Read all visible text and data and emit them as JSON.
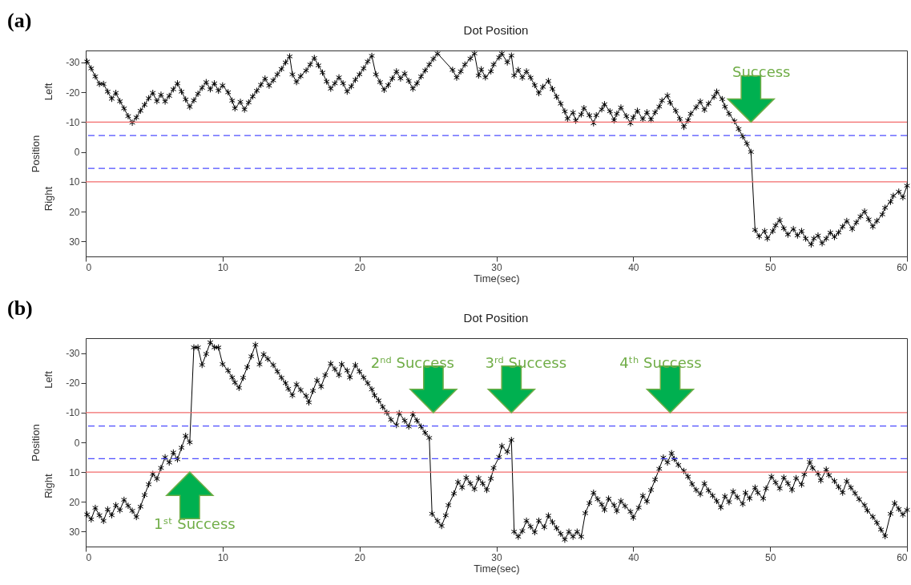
{
  "chart_data": [
    {
      "type": "line",
      "title": "Dot Position",
      "xlabel": "Time(sec)",
      "ylabel": "Position",
      "marker": "cross",
      "line_style": "solid",
      "xlim": [
        0,
        60
      ],
      "xticks": [
        0,
        10,
        20,
        30,
        40,
        50,
        60
      ],
      "ylim": [
        35,
        -34
      ],
      "yticks": [
        -30,
        -20,
        -10,
        0,
        10,
        20,
        30
      ],
      "x": [
        0.1,
        0.4,
        0.7,
        1.0,
        1.3,
        1.6,
        1.9,
        2.2,
        2.5,
        2.8,
        3.1,
        3.4,
        3.7,
        4.0,
        4.3,
        4.6,
        4.9,
        5.2,
        5.5,
        5.8,
        6.1,
        6.4,
        6.7,
        7.0,
        7.3,
        7.6,
        7.9,
        8.2,
        8.5,
        8.8,
        9.1,
        9.4,
        9.7,
        10.0,
        10.4,
        10.7,
        10.9,
        11.3,
        11.6,
        11.9,
        12.2,
        12.5,
        12.8,
        13.1,
        13.4,
        13.7,
        14.0,
        14.3,
        14.6,
        14.9,
        15.1,
        15.4,
        15.7,
        16.1,
        16.4,
        16.7,
        17.0,
        17.3,
        17.6,
        17.9,
        18.2,
        18.5,
        18.8,
        19.1,
        19.4,
        19.7,
        20.0,
        20.3,
        20.6,
        20.9,
        21.2,
        21.5,
        21.8,
        22.1,
        22.4,
        22.7,
        23.0,
        23.3,
        23.6,
        23.9,
        24.2,
        24.5,
        24.8,
        25.1,
        25.4,
        25.7,
        26.8,
        27.1,
        27.4,
        27.7,
        28.1,
        28.4,
        28.7,
        28.9,
        29.2,
        29.6,
        29.8,
        30.2,
        30.4,
        30.8,
        31.1,
        31.3,
        31.6,
        31.9,
        32.2,
        32.5,
        32.8,
        33.1,
        33.4,
        33.8,
        34.1,
        34.4,
        34.7,
        35.0,
        35.2,
        35.6,
        35.8,
        36.2,
        36.4,
        36.8,
        37.1,
        37.3,
        37.7,
        37.9,
        38.3,
        38.6,
        38.8,
        39.1,
        39.5,
        39.8,
        40.0,
        40.3,
        40.7,
        41.0,
        41.3,
        41.6,
        41.9,
        42.1,
        42.5,
        42.7,
        43.1,
        43.4,
        43.7,
        44.0,
        44.2,
        44.6,
        44.9,
        45.2,
        45.5,
        45.9,
        46.1,
        46.5,
        46.7,
        47.0,
        47.4,
        47.7,
        48.0,
        48.3,
        48.6,
        48.9,
        49.2,
        49.6,
        49.8,
        50.2,
        50.4,
        50.7,
        51.0,
        51.3,
        51.7,
        52.0,
        52.3,
        52.6,
        53.0,
        53.2,
        53.5,
        53.8,
        54.1,
        54.4,
        54.7,
        55.0,
        55.3,
        55.6,
        56.0,
        56.3,
        56.6,
        56.9,
        57.2,
        57.5,
        57.8,
        58.2,
        58.4,
        58.8,
        59.0,
        59.4,
        59.7,
        60.0
      ],
      "series": [
        {
          "color": "#000000",
          "values": [
            -30.3,
            -28,
            -25.3,
            -22.8,
            -22.8,
            -20.2,
            -17.8,
            -19.8,
            -17,
            -14.6,
            -12,
            -9.8,
            -11.6,
            -13.8,
            -15.8,
            -18,
            -19.8,
            -17,
            -19.2,
            -16.9,
            -18.8,
            -21,
            -23,
            -20.2,
            -17.6,
            -15.1,
            -17.3,
            -19.5,
            -21.5,
            -23.4,
            -21,
            -23,
            -20.5,
            -22.3,
            -20,
            -17.2,
            -14.6,
            -16.8,
            -14.2,
            -16.6,
            -18.6,
            -20.5,
            -22.5,
            -24.6,
            -22.2,
            -24,
            -26,
            -27.8,
            -30,
            -32,
            -26,
            -23.4,
            -25.4,
            -27.3,
            -29.3,
            -31.5,
            -29,
            -26.6,
            -23.6,
            -21.2,
            -23,
            -25,
            -23,
            -20.2,
            -22,
            -24.2,
            -26,
            -28,
            -30.3,
            -32.2,
            -26,
            -23.4,
            -20.8,
            -22.4,
            -24.6,
            -27,
            -24.6,
            -26.3,
            -23.8,
            -21.2,
            -23,
            -25.3,
            -27.3,
            -29.3,
            -31.2,
            -33,
            -27.5,
            -24.9,
            -27,
            -29.3,
            -31.3,
            -33,
            -25.6,
            -27.7,
            -25,
            -27,
            -29.3,
            -31.7,
            -33,
            -30,
            -32.3,
            -25.6,
            -27.5,
            -24.9,
            -27,
            -24.9,
            -22.4,
            -19.7,
            -21.8,
            -23.8,
            -21.1,
            -18.5,
            -16.2,
            -13.6,
            -11.1,
            -13.2,
            -10.5,
            -12.6,
            -14.7,
            -12.3,
            -9.6,
            -12.3,
            -14.3,
            -16,
            -13.6,
            -10.6,
            -12.8,
            -14.9,
            -12,
            -9.6,
            -11.6,
            -13.8,
            -11,
            -13.3,
            -10.8,
            -13.3,
            -15.2,
            -17.2,
            -18.9,
            -16.5,
            -13.8,
            -11.1,
            -8.4,
            -10.6,
            -12.8,
            -15,
            -16.9,
            -14.1,
            -16.2,
            -18.5,
            -20.2,
            -17.7,
            -15.2,
            -12.8,
            -10.3,
            -7.7,
            -5.2,
            -2.8,
            0,
            26.1,
            28.3,
            26.5,
            29,
            26.5,
            24.6,
            22.8,
            25.6,
            27.7,
            25.8,
            28,
            26.5,
            29,
            31,
            29,
            28,
            30.6,
            29,
            27,
            28.5,
            27,
            25,
            23.1,
            25.8,
            23.6,
            21.6,
            19.9,
            22.6,
            25,
            23.1,
            20.9,
            18.7,
            16.7,
            14.7,
            13.3,
            15.2,
            11.3
          ]
        }
      ],
      "ref_lines": [
        {
          "axis": "y",
          "value": -10,
          "color": "#f26b6b",
          "line_style": "solid"
        },
        {
          "axis": "y",
          "value": -5.5,
          "color": "#4d4dff",
          "line_style": "dashed"
        },
        {
          "axis": "y",
          "value": 5.5,
          "color": "#4d4dff",
          "line_style": "dashed"
        },
        {
          "axis": "y",
          "value": 10,
          "color": "#f26b6b",
          "line_style": "solid"
        }
      ],
      "annotations": [
        "(a)",
        "Left",
        "Right",
        {
          "text": "Success",
          "x": 48.6,
          "y": -10
        }
      ]
    },
    {
      "type": "line",
      "title": "Dot Position",
      "xlabel": "Time(sec)",
      "ylabel": "Position",
      "marker": "cross",
      "line_style": "solid",
      "xlim": [
        0,
        60
      ],
      "xticks": [
        0,
        10,
        20,
        30,
        40,
        50,
        60
      ],
      "ylim": [
        35,
        -35
      ],
      "yticks": [
        -30,
        -20,
        -10,
        0,
        10,
        20,
        30
      ],
      "x": [
        0.1,
        0.4,
        0.7,
        1.0,
        1.3,
        1.6,
        1.9,
        2.2,
        2.5,
        2.8,
        3.1,
        3.4,
        3.7,
        4.0,
        4.3,
        4.6,
        4.9,
        5.2,
        5.5,
        5.8,
        6.1,
        6.4,
        6.7,
        7.0,
        7.3,
        7.6,
        7.9,
        8.2,
        8.5,
        8.8,
        9.1,
        9.4,
        9.7,
        10.0,
        10.4,
        10.7,
        10.9,
        11.2,
        11.5,
        11.8,
        12.1,
        12.4,
        12.7,
        13.0,
        13.3,
        13.7,
        14.0,
        14.3,
        14.6,
        14.8,
        15.1,
        15.4,
        15.7,
        16.1,
        16.3,
        16.6,
        16.9,
        17.2,
        17.5,
        17.9,
        18.2,
        18.5,
        18.7,
        19.1,
        19.3,
        19.7,
        20.0,
        20.3,
        20.6,
        20.9,
        21.1,
        21.4,
        21.7,
        22.0,
        22.3,
        22.7,
        22.9,
        23.3,
        23.6,
        23.9,
        24.2,
        24.5,
        24.8,
        25.1,
        25.3,
        25.7,
        26.0,
        26.3,
        26.5,
        26.9,
        27.2,
        27.5,
        27.8,
        28.1,
        28.4,
        28.7,
        29.0,
        29.3,
        29.6,
        29.8,
        30.2,
        30.4,
        30.8,
        31.1,
        31.3,
        31.6,
        31.9,
        32.2,
        32.5,
        32.8,
        33.1,
        33.5,
        33.8,
        34.1,
        34.4,
        34.7,
        35.0,
        35.3,
        35.6,
        35.9,
        36.2,
        36.5,
        36.8,
        37.1,
        37.4,
        37.7,
        37.9,
        38.2,
        38.6,
        38.8,
        39.1,
        39.4,
        39.8,
        40.0,
        40.4,
        40.7,
        41.0,
        41.3,
        41.6,
        41.9,
        42.2,
        42.5,
        42.8,
        43.0,
        43.3,
        43.7,
        44.0,
        44.3,
        44.6,
        44.9,
        45.2,
        45.5,
        45.8,
        46.1,
        46.4,
        46.7,
        47.0,
        47.3,
        47.6,
        48.0,
        48.2,
        48.5,
        48.9,
        49.1,
        49.5,
        49.7,
        50.1,
        50.4,
        50.7,
        51.0,
        51.3,
        51.6,
        51.9,
        52.3,
        52.5,
        52.9,
        53.1,
        53.5,
        53.7,
        54.1,
        54.3,
        54.7,
        55.0,
        55.3,
        55.6,
        55.9,
        56.2,
        56.5,
        56.9,
        57.1,
        57.5,
        57.8,
        58.1,
        58.4,
        58.8,
        59.1,
        59.4,
        59.7,
        60.0
      ],
      "series": [
        {
          "color": "#000000",
          "values": [
            24.2,
            25.9,
            22,
            24.5,
            26.4,
            22.5,
            24.5,
            21.1,
            22.8,
            19.3,
            21.3,
            23,
            25.1,
            21.6,
            17.7,
            14.1,
            10.6,
            12.3,
            8.6,
            5,
            6.8,
            3.4,
            5.7,
            1.8,
            -2.2,
            0,
            -31.9,
            -31.9,
            -26,
            -29.7,
            -33.6,
            -31.9,
            -31.9,
            -26.3,
            -24.1,
            -21.8,
            -20.1,
            -18.3,
            -21.7,
            -25.3,
            -28.9,
            -32.8,
            -26.2,
            -29.6,
            -28,
            -26,
            -23.8,
            -21.7,
            -19.9,
            -18,
            -15.8,
            -19.5,
            -17.6,
            -15.6,
            -13.4,
            -17.3,
            -20.9,
            -18.7,
            -22.6,
            -26.5,
            -24.6,
            -22.6,
            -26.3,
            -24.1,
            -21.8,
            -26,
            -23.8,
            -21.8,
            -19.9,
            -17.8,
            -15.8,
            -14.1,
            -11.9,
            -10,
            -7.6,
            -5.8,
            -9.8,
            -7.3,
            -5.3,
            -9.5,
            -7.3,
            -5.3,
            -3.2,
            -1.5,
            24,
            26.4,
            28.1,
            24.5,
            21.1,
            17.2,
            13.3,
            15.2,
            11.8,
            13.8,
            15.7,
            12,
            13.8,
            16,
            12.2,
            8.6,
            4.9,
            1.2,
            3.2,
            -0.8,
            30,
            31.7,
            29.8,
            26.3,
            28.3,
            30.2,
            26.3,
            28.5,
            24.6,
            26.8,
            28.8,
            30.7,
            32.7,
            30,
            31.7,
            30,
            31.7,
            23.8,
            20.4,
            16.9,
            19.1,
            20.9,
            22.7,
            18.9,
            21.1,
            23.1,
            19.7,
            21.4,
            23.3,
            25.3,
            21.9,
            17.9,
            19.9,
            16,
            12.5,
            8.9,
            5.1,
            6.8,
            3.6,
            5.6,
            7.6,
            9.6,
            11.5,
            14,
            16,
            17.4,
            13.8,
            16.2,
            17.9,
            19.7,
            21.9,
            18.1,
            20.1,
            16.5,
            18.4,
            20.7,
            16.9,
            18.9,
            15.2,
            16.9,
            18.9,
            15.5,
            11.5,
            13.5,
            15.5,
            11.8,
            13.8,
            16,
            12,
            14.2,
            10.8,
            6.6,
            8.6,
            10.5,
            12.8,
            9.1,
            11,
            13,
            15,
            16.9,
            13,
            15.2,
            17.1,
            19.1,
            21.1,
            22.9,
            25,
            27,
            29.3,
            31.5,
            24,
            20.4,
            22.4,
            24.3,
            22.7
          ]
        }
      ],
      "ref_lines": [
        {
          "axis": "y",
          "value": -10,
          "color": "#f26b6b",
          "line_style": "solid"
        },
        {
          "axis": "y",
          "value": -5.5,
          "color": "#4d4dff",
          "line_style": "dashed"
        },
        {
          "axis": "y",
          "value": 5.5,
          "color": "#4d4dff",
          "line_style": "dashed"
        },
        {
          "axis": "y",
          "value": 10,
          "color": "#f26b6b",
          "line_style": "solid"
        }
      ],
      "annotations": [
        "(b)",
        "Left",
        "Right",
        {
          "text": "1ˢᵗ Success",
          "x": 7.6,
          "y": 10
        },
        {
          "text": "2ⁿᵈ Success",
          "x": 25.4,
          "y": -10
        },
        {
          "text": "3ʳᵈ Success",
          "x": 31.1,
          "y": -10
        },
        {
          "text": "4ᵗʰ Success",
          "x": 42.7,
          "y": -10
        }
      ]
    }
  ]
}
